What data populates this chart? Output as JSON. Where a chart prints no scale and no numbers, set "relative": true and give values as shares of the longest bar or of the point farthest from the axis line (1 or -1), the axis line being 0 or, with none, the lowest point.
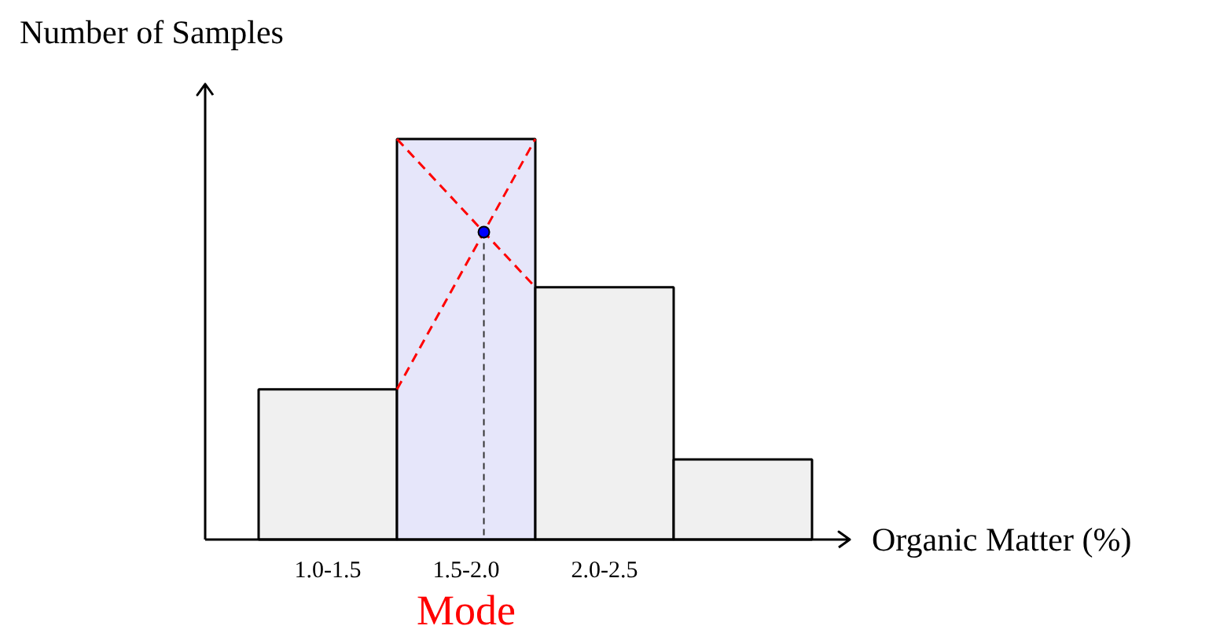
{
  "chart_data": {
    "type": "bar",
    "xlabel": "Organic Matter (%)",
    "ylabel": "Number of Samples",
    "categories": [
      "1.0-1.5",
      "1.5-2.0",
      "2.0-2.5",
      null
    ],
    "values": [
      0.375,
      1,
      0.63,
      0.2
    ],
    "colors": [
      "#f0f0f0",
      "#e6e6fa",
      "#f0f0f0",
      "#f0f0f0"
    ],
    "relative": true,
    "annotations": [
      "Mode"
    ]
  }
}
